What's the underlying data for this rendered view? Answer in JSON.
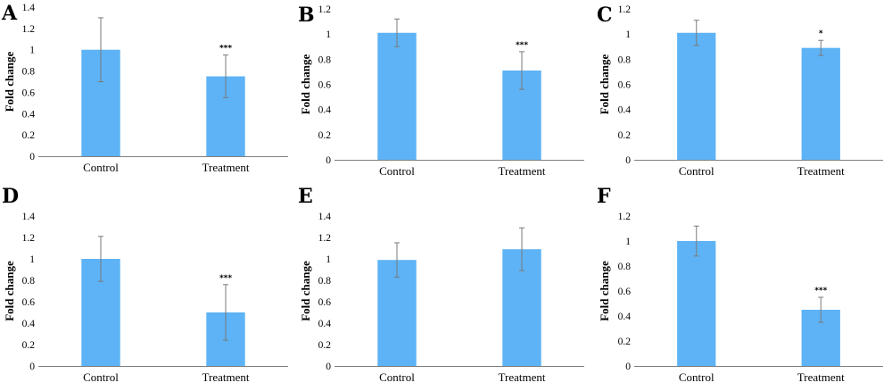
{
  "figure": {
    "bar_color": "#5db3f5",
    "err_color": "#7a7a7a",
    "axis_color": "#808080"
  },
  "chart_data": [
    {
      "panel": "A",
      "type": "bar",
      "categories": [
        "Control",
        "Treatment"
      ],
      "values": [
        1.0,
        0.75
      ],
      "errors": [
        0.3,
        0.2
      ],
      "annotations": [
        "",
        "***"
      ],
      "title": "",
      "xlabel": "",
      "ylabel": "Fold change",
      "ylim": [
        0,
        1.4
      ],
      "yticks": [
        0,
        0.2,
        0.4,
        0.6,
        0.8,
        1,
        1.2,
        1.4
      ],
      "grid": false
    },
    {
      "panel": "B",
      "type": "bar",
      "categories": [
        "Control",
        "Treatment"
      ],
      "values": [
        1.01,
        0.71
      ],
      "errors": [
        0.11,
        0.15
      ],
      "annotations": [
        "",
        "***"
      ],
      "title": "",
      "xlabel": "",
      "ylabel": "Fold change",
      "ylim": [
        0,
        1.2
      ],
      "yticks": [
        0,
        0.2,
        0.4,
        0.6,
        0.8,
        1,
        1.2
      ],
      "grid": false
    },
    {
      "panel": "C",
      "type": "bar",
      "categories": [
        "Control",
        "Treatment"
      ],
      "values": [
        1.01,
        0.89
      ],
      "errors": [
        0.1,
        0.06
      ],
      "annotations": [
        "",
        "*"
      ],
      "title": "",
      "xlabel": "",
      "ylabel": "Fold change",
      "ylim": [
        0,
        1.2
      ],
      "yticks": [
        0,
        0.2,
        0.4,
        0.6,
        0.8,
        1,
        1.2
      ],
      "grid": false
    },
    {
      "panel": "D",
      "type": "bar",
      "categories": [
        "Control",
        "Treatment"
      ],
      "values": [
        1.0,
        0.5
      ],
      "errors": [
        0.21,
        0.26
      ],
      "annotations": [
        "",
        "***"
      ],
      "title": "",
      "xlabel": "",
      "ylabel": "Fold change",
      "ylim": [
        0,
        1.4
      ],
      "yticks": [
        0,
        0.2,
        0.4,
        0.6,
        0.8,
        1,
        1.2,
        1.4
      ],
      "grid": false
    },
    {
      "panel": "E",
      "type": "bar",
      "categories": [
        "Control",
        "Treatment"
      ],
      "values": [
        0.99,
        1.09
      ],
      "errors": [
        0.16,
        0.2
      ],
      "annotations": [
        "",
        ""
      ],
      "title": "",
      "xlabel": "",
      "ylabel": "Fold change",
      "ylim": [
        0,
        1.4
      ],
      "yticks": [
        0,
        0.2,
        0.4,
        0.6,
        0.8,
        1,
        1.2,
        1.4
      ],
      "grid": false
    },
    {
      "panel": "F",
      "type": "bar",
      "categories": [
        "Control",
        "Treatment"
      ],
      "values": [
        1.0,
        0.45
      ],
      "errors": [
        0.12,
        0.1
      ],
      "annotations": [
        "",
        "***"
      ],
      "title": "",
      "xlabel": "",
      "ylabel": "Fold change",
      "ylim": [
        0,
        1.2
      ],
      "yticks": [
        0,
        0.2,
        0.4,
        0.6,
        0.8,
        1,
        1.2
      ],
      "grid": false
    }
  ]
}
